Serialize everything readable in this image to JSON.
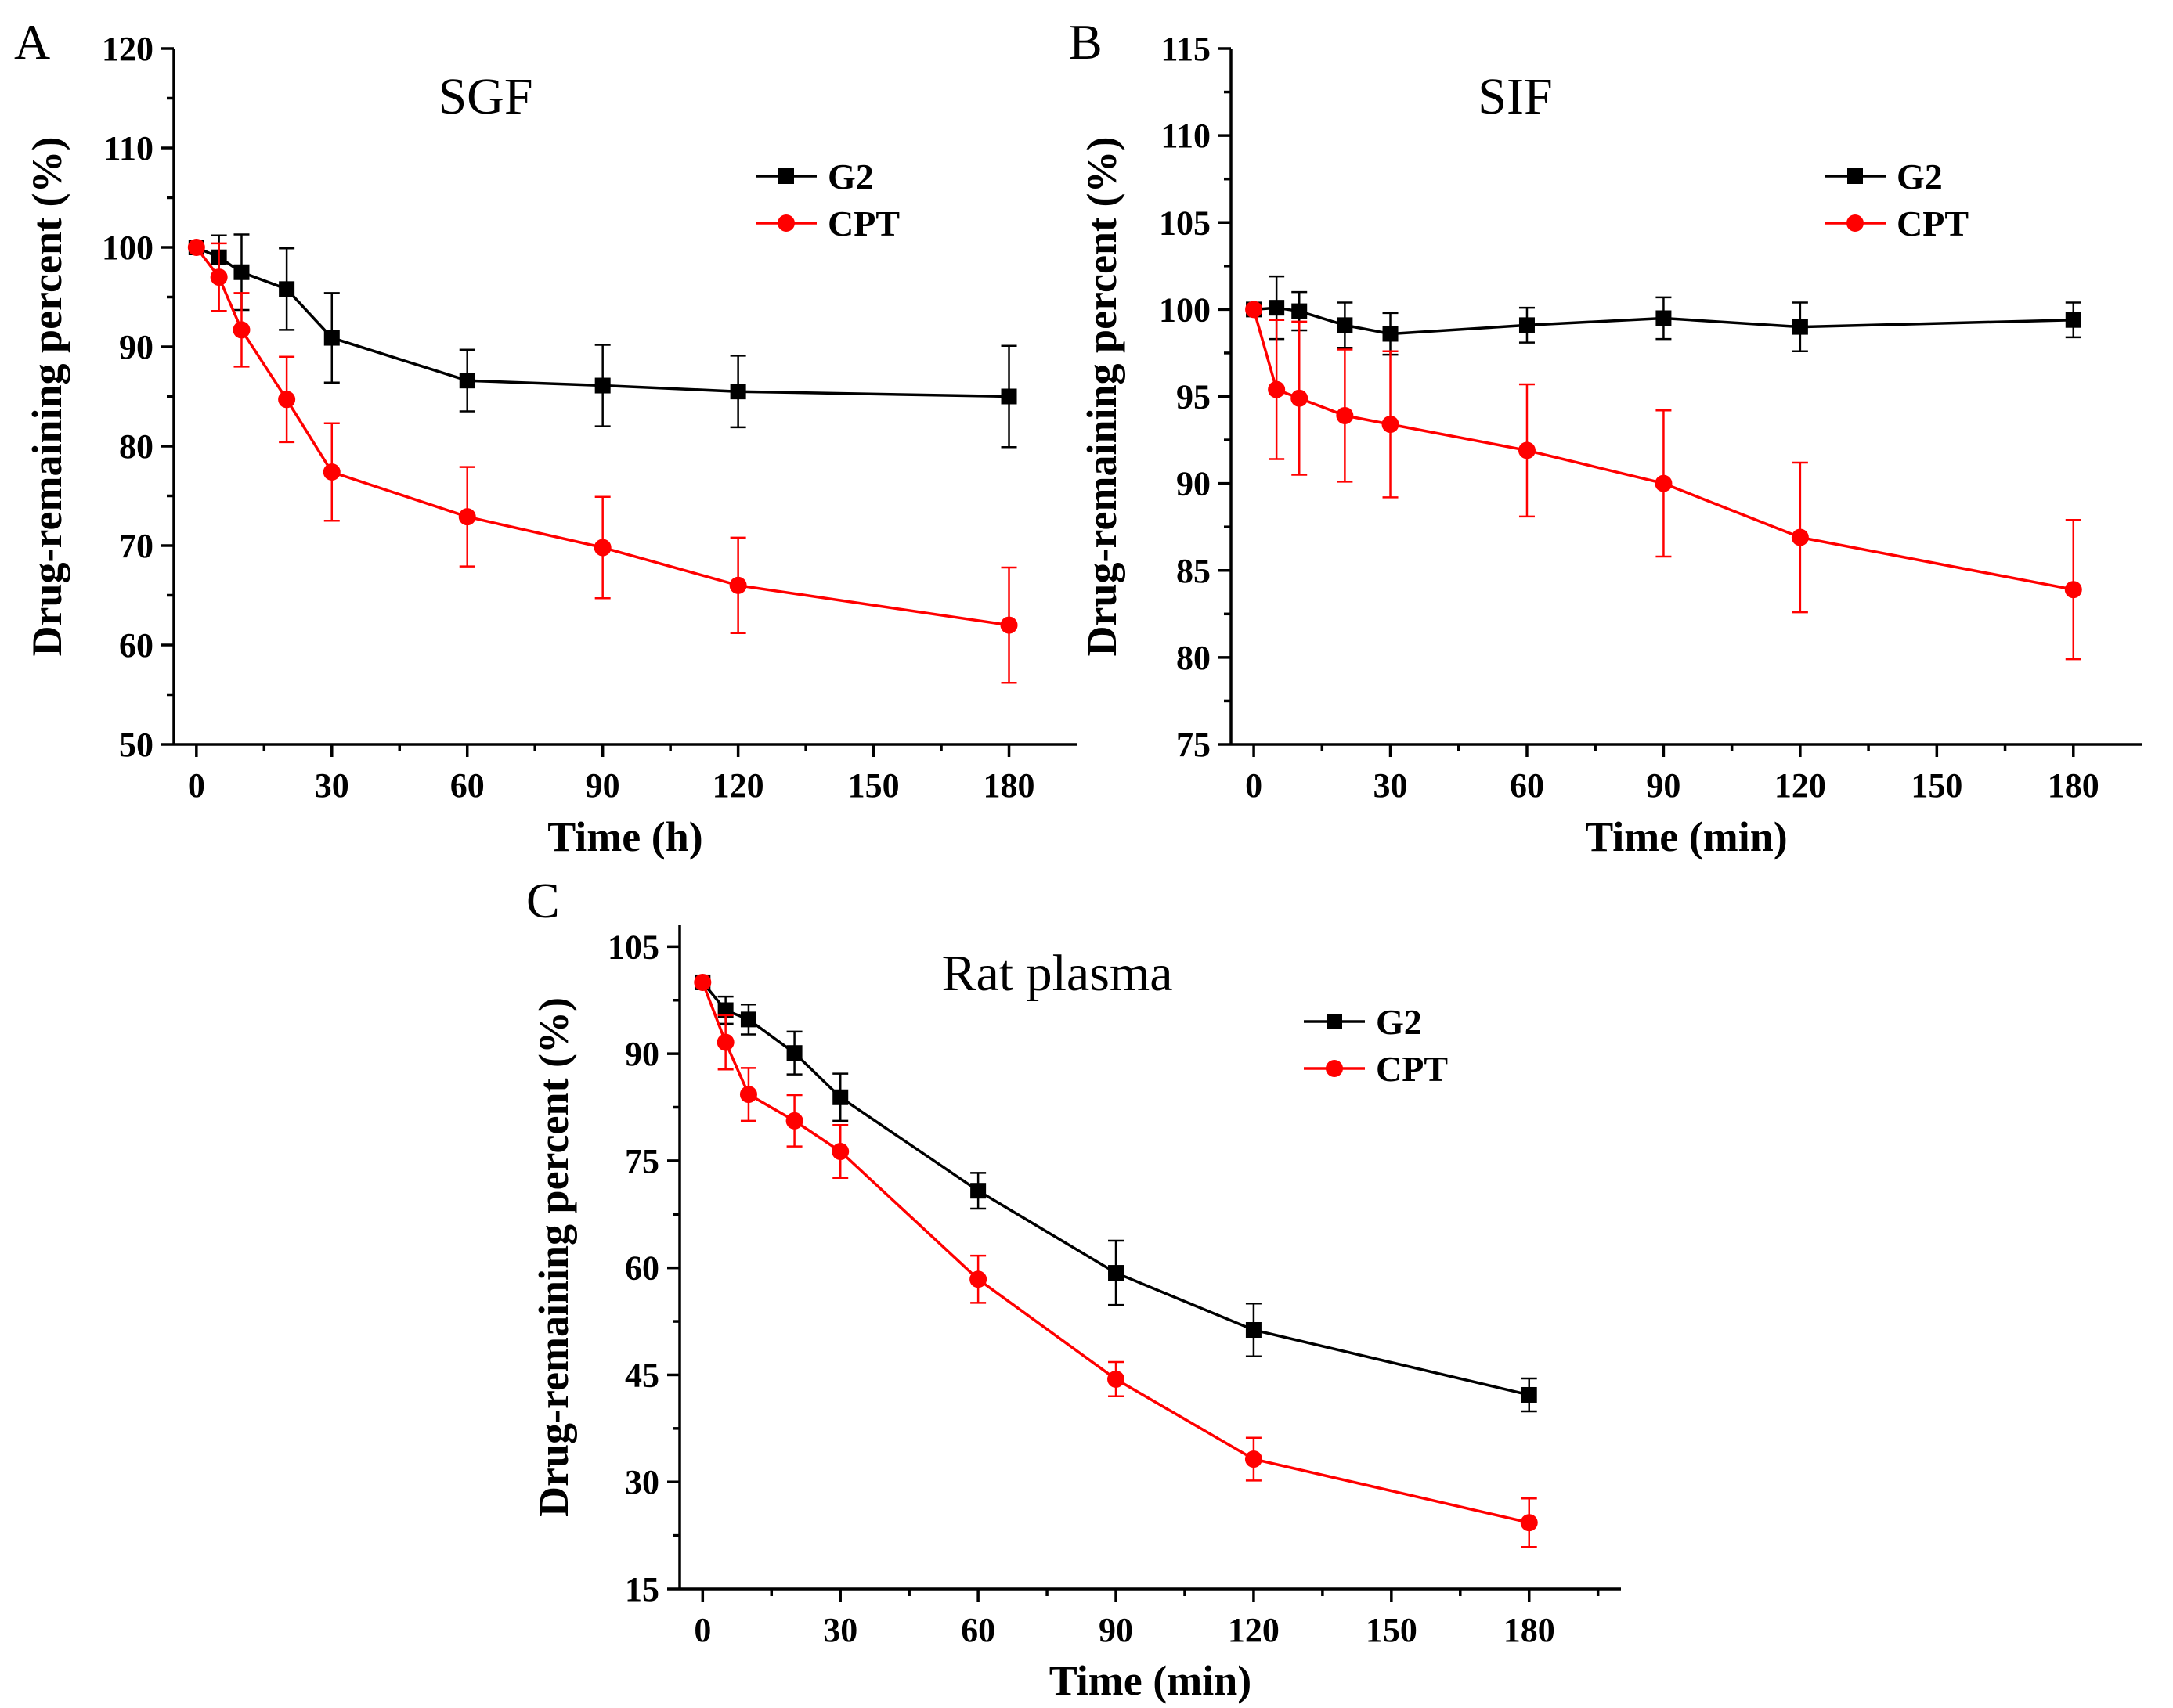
{
  "chart_data": [
    {
      "type": "line",
      "letter": "A",
      "title": "SGF",
      "xlabel": "Time (h)",
      "ylabel": "Drug-remaining percent (%)",
      "xlim": [
        -5,
        195
      ],
      "ylim": [
        50,
        120
      ],
      "xticks": [
        0,
        30,
        60,
        90,
        120,
        150,
        180
      ],
      "yticks": [
        50,
        60,
        70,
        80,
        90,
        100,
        110,
        120
      ],
      "legend": "top-right",
      "series": [
        {
          "name": "G2",
          "color": "#000000",
          "marker": "square",
          "x": [
            0,
            5,
            10,
            20,
            30,
            60,
            90,
            120,
            180
          ],
          "y": [
            100,
            99,
            97.5,
            95.8,
            90.9,
            86.6,
            86.1,
            85.5,
            85.0
          ],
          "err": [
            0,
            2.2,
            3.8,
            4.1,
            4.5,
            3.1,
            4.1,
            3.6,
            5.1
          ]
        },
        {
          "name": "CPT",
          "color": "#ff0000",
          "marker": "circle",
          "x": [
            0,
            5,
            10,
            20,
            30,
            60,
            90,
            120,
            180
          ],
          "y": [
            100,
            97,
            91.7,
            84.7,
            77.4,
            72.9,
            69.8,
            66.0,
            62.0
          ],
          "err": [
            0,
            3.4,
            3.7,
            4.3,
            4.9,
            5.0,
            5.1,
            4.8,
            5.8
          ]
        }
      ]
    },
    {
      "type": "line",
      "letter": "B",
      "title": "SIF",
      "xlabel": "Time (min)",
      "ylabel": "Drug-remaining percent (%)",
      "xlim": [
        -5,
        195
      ],
      "ylim": [
        75,
        115
      ],
      "xticks": [
        0,
        30,
        60,
        90,
        120,
        150,
        180
      ],
      "yticks": [
        75,
        80,
        85,
        90,
        95,
        100,
        105,
        110,
        115
      ],
      "legend": "top-right",
      "series": [
        {
          "name": "G2",
          "color": "#000000",
          "marker": "square",
          "x": [
            0,
            5,
            10,
            20,
            30,
            60,
            90,
            120,
            180
          ],
          "y": [
            100,
            100.1,
            99.9,
            99.1,
            98.6,
            99.1,
            99.5,
            99.0,
            99.4
          ],
          "err": [
            0,
            1.8,
            1.1,
            1.3,
            1.2,
            1.0,
            1.2,
            1.4,
            1.0
          ]
        },
        {
          "name": "CPT",
          "color": "#ff0000",
          "marker": "circle",
          "x": [
            0,
            5,
            10,
            20,
            30,
            60,
            90,
            120,
            180
          ],
          "y": [
            100,
            95.4,
            94.9,
            93.9,
            93.4,
            91.9,
            90.0,
            86.9,
            83.9
          ],
          "err": [
            0,
            4.0,
            4.4,
            3.8,
            4.2,
            3.8,
            4.2,
            4.3,
            4.0
          ]
        }
      ]
    },
    {
      "type": "line",
      "letter": "C",
      "title": "Rat plasma",
      "xlabel": "Time (min)",
      "ylabel": "Drug-remaining percent (%)",
      "xlim": [
        -5,
        200
      ],
      "ylim": [
        15,
        108
      ],
      "xticks": [
        0,
        30,
        60,
        90,
        120,
        150,
        180
      ],
      "yticks": [
        15,
        30,
        45,
        60,
        75,
        90,
        105
      ],
      "legend": "top-right",
      "series": [
        {
          "name": "G2",
          "color": "#000000",
          "marker": "square",
          "x": [
            0,
            5,
            10,
            20,
            30,
            60,
            90,
            120,
            180
          ],
          "y": [
            100,
            96.1,
            94.8,
            90.1,
            83.9,
            70.8,
            59.3,
            51.3,
            42.2
          ],
          "err": [
            0,
            1.9,
            2.1,
            3.0,
            3.3,
            2.5,
            4.5,
            3.7,
            2.3
          ]
        },
        {
          "name": "CPT",
          "color": "#ff0000",
          "marker": "circle",
          "x": [
            0,
            5,
            10,
            20,
            30,
            60,
            90,
            120,
            180
          ],
          "y": [
            100,
            91.6,
            84.3,
            80.6,
            76.3,
            58.4,
            44.4,
            33.2,
            24.3
          ],
          "err": [
            0,
            3.8,
            3.7,
            3.6,
            3.7,
            3.3,
            2.4,
            3.0,
            3.4
          ]
        }
      ]
    }
  ]
}
